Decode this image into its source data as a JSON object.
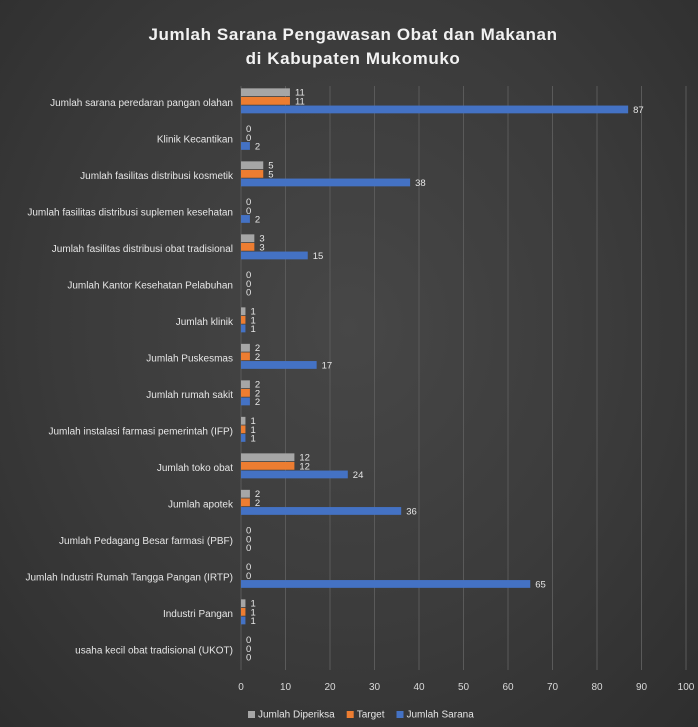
{
  "chart_data": {
    "type": "bar",
    "orientation": "horizontal",
    "title": [
      "Jumlah Sarana Pengawasan Obat dan Makanan",
      "di Kabupaten Mukomuko"
    ],
    "categories": [
      "Jumlah sarana peredaran pangan olahan",
      "Klinik Kecantikan",
      "Jumlah fasilitas distribusi kosmetik",
      "Jumlah fasilitas distribusi suplemen kesehatan",
      "Jumlah fasilitas distribusi obat tradisional",
      "Jumlah Kantor Kesehatan Pelabuhan",
      "Jumlah klinik",
      "Jumlah Puskesmas",
      "Jumlah rumah sakit",
      "Jumlah instalasi farmasi pemerintah (IFP)",
      "Jumlah toko obat",
      "Jumlah apotek",
      "Jumlah Pedagang Besar farmasi (PBF)",
      "Jumlah Industri Rumah Tangga Pangan (IRTP)",
      "Industri Pangan",
      "usaha kecil obat tradisional (UKOT)"
    ],
    "series": [
      {
        "name": "Jumlah Diperiksa",
        "color": "#a6a6a6",
        "values": [
          11,
          0,
          5,
          0,
          3,
          0,
          1,
          2,
          2,
          1,
          12,
          2,
          0,
          0,
          1,
          0
        ]
      },
      {
        "name": "Target",
        "color": "#ed7d31",
        "values": [
          11,
          0,
          5,
          0,
          3,
          0,
          1,
          2,
          2,
          1,
          12,
          2,
          0,
          0,
          1,
          0
        ]
      },
      {
        "name": "Jumlah Sarana",
        "color": "#4472c4",
        "values": [
          87,
          2,
          38,
          2,
          15,
          0,
          1,
          17,
          2,
          1,
          24,
          36,
          0,
          65,
          1,
          0
        ]
      }
    ],
    "xlim": [
      0,
      100
    ],
    "xticks": [
      0,
      10,
      20,
      30,
      40,
      50,
      60,
      70,
      80,
      90,
      100
    ],
    "grid": true,
    "legend": "bottom"
  }
}
